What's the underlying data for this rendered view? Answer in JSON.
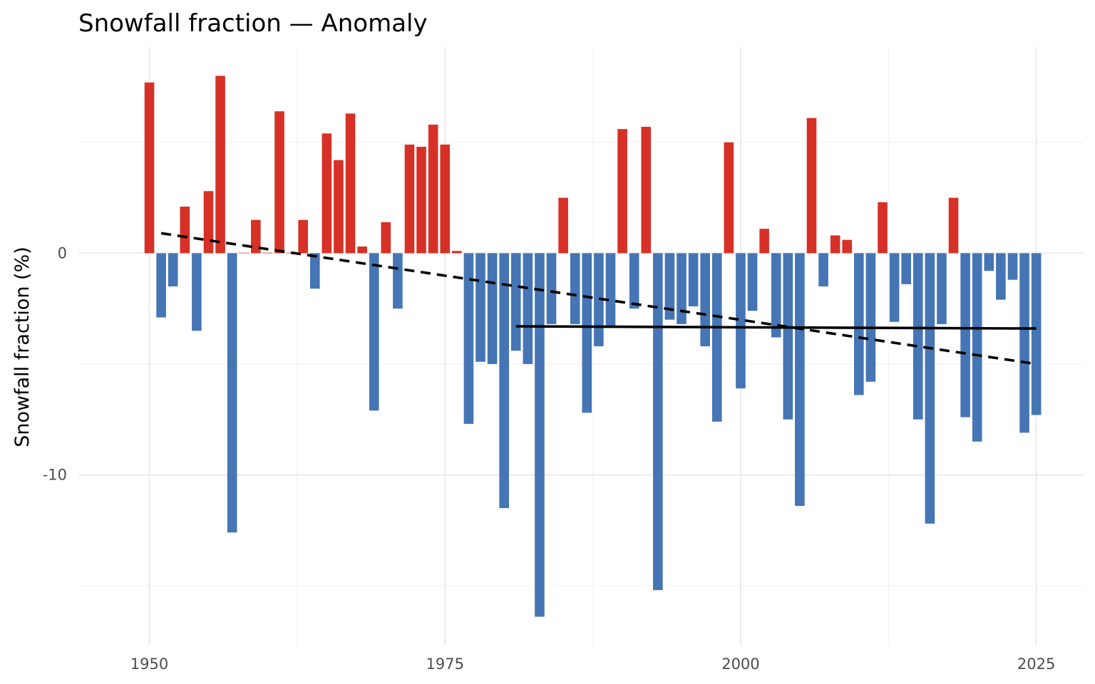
{
  "chart_data": {
    "type": "bar",
    "title": "Snowfall fraction — Anomaly",
    "xlabel": "",
    "ylabel": "Snowfall fraction (%)",
    "xlim": [
      1944,
      2029
    ],
    "ylim": [
      -17.7,
      9.3
    ],
    "x_ticks": [
      {
        "value": 1950,
        "label": "1950"
      },
      {
        "value": 1975,
        "label": "1975"
      },
      {
        "value": 2000,
        "label": "2000"
      },
      {
        "value": 2025,
        "label": "2025"
      }
    ],
    "y_ticks": [
      {
        "value": 0,
        "label": "0"
      },
      {
        "value": -10,
        "label": "-10"
      }
    ],
    "y_minor": [
      5,
      -5,
      -15
    ],
    "x_minor": [
      1962.5,
      1987.5,
      2012.5
    ],
    "grid": true,
    "legend": "none",
    "colors": {
      "positive": "#d73027",
      "negative": "#4575b4",
      "trend": "#000000"
    },
    "x": [
      1950,
      1951,
      1952,
      1953,
      1954,
      1955,
      1956,
      1957,
      1958,
      1959,
      1960,
      1961,
      1962,
      1963,
      1964,
      1965,
      1966,
      1967,
      1968,
      1969,
      1970,
      1971,
      1972,
      1973,
      1974,
      1975,
      1976,
      1977,
      1978,
      1979,
      1980,
      1981,
      1982,
      1983,
      1984,
      1985,
      1986,
      1987,
      1988,
      1989,
      1990,
      1991,
      1992,
      1993,
      1994,
      1995,
      1996,
      1997,
      1998,
      1999,
      2000,
      2001,
      2002,
      2003,
      2004,
      2005,
      2006,
      2007,
      2008,
      2009,
      2010,
      2011,
      2012,
      2013,
      2014,
      2015,
      2016,
      2017,
      2018,
      2019,
      2020,
      2021,
      2022,
      2023,
      2024,
      2025
    ],
    "values": [
      7.7,
      -2.9,
      -1.5,
      2.1,
      -3.5,
      2.8,
      8.0,
      -12.6,
      0.0,
      1.5,
      0.0,
      6.4,
      0.0,
      1.5,
      -1.6,
      5.4,
      4.2,
      6.3,
      0.3,
      -7.1,
      1.4,
      -2.5,
      4.9,
      4.8,
      5.8,
      4.9,
      0.1,
      -7.7,
      -4.9,
      -5.0,
      -11.5,
      -4.4,
      -5.0,
      -16.4,
      -3.2,
      2.5,
      -3.2,
      -7.2,
      -4.2,
      -3.3,
      5.6,
      -2.5,
      5.7,
      -15.2,
      -3.0,
      -3.2,
      -2.4,
      -4.2,
      -7.6,
      5.0,
      -6.1,
      -2.6,
      1.1,
      -3.8,
      -7.5,
      -11.4,
      6.1,
      -1.5,
      0.8,
      0.6,
      -6.4,
      -5.8,
      2.3,
      -3.1,
      -1.4,
      -7.5,
      -12.2,
      -3.2,
      2.5,
      -7.4,
      -8.5,
      -0.8,
      -2.1,
      -1.2,
      -8.1,
      -7.3
    ],
    "trend_lines": [
      {
        "style": "dashed",
        "x": [
          1951,
          2025
        ],
        "y": [
          0.9,
          -5.0
        ]
      },
      {
        "style": "solid",
        "x": [
          1981,
          2025
        ],
        "y": [
          -3.3,
          -3.4
        ]
      }
    ]
  }
}
